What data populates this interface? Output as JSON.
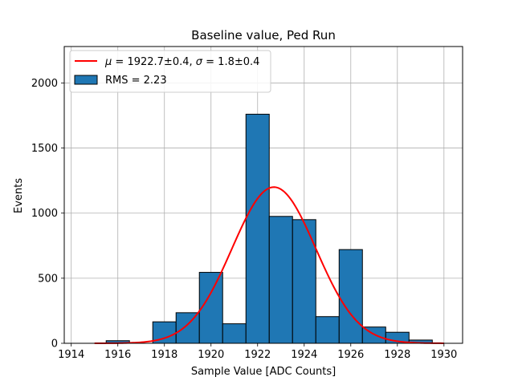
{
  "chart_data": {
    "type": "bar",
    "title": "Baseline value, Ped Run",
    "xlabel": "Sample Value [ADC Counts]",
    "ylabel": "Events",
    "xlim": [
      1913.7,
      1930.8
    ],
    "ylim": [
      0,
      2280
    ],
    "xticks": [
      1914,
      1916,
      1918,
      1920,
      1922,
      1924,
      1926,
      1928,
      1930
    ],
    "yticks": [
      0,
      500,
      1000,
      1500,
      2000
    ],
    "grid": true,
    "legend_position": "top-left",
    "bin_width": 1,
    "bins": [
      {
        "x0": 1915.5,
        "value": 20
      },
      {
        "x0": 1917.5,
        "value": 165
      },
      {
        "x0": 1918.5,
        "value": 235
      },
      {
        "x0": 1919.5,
        "value": 545
      },
      {
        "x0": 1920.5,
        "value": 150
      },
      {
        "x0": 1921.5,
        "value": 1760
      },
      {
        "x0": 1922.5,
        "value": 975
      },
      {
        "x0": 1923.5,
        "value": 950
      },
      {
        "x0": 1924.5,
        "value": 205
      },
      {
        "x0": 1925.5,
        "value": 720
      },
      {
        "x0": 1926.5,
        "value": 125
      },
      {
        "x0": 1927.5,
        "value": 85
      },
      {
        "x0": 1928.5,
        "value": 25
      }
    ],
    "fit": {
      "mu": 1922.7,
      "sigma": 1.8,
      "amplitude": 1200,
      "x_range": [
        1915,
        1930
      ]
    },
    "series": [
      {
        "name": "μ = 1922.7±0.4, σ = 1.8±0.4",
        "type": "line",
        "color": "#ff0000"
      },
      {
        "name": "RMS = 2.23",
        "type": "bar",
        "color": "#1f77b4"
      }
    ],
    "legend": {
      "fit_label_mu_symbol": "μ",
      "fit_label_mu_text": " = 1922.7±0.4, ",
      "fit_label_sigma_symbol": "σ",
      "fit_label_sigma_text": " = 1.8±0.4",
      "hist_label": "RMS = 2.23"
    }
  }
}
